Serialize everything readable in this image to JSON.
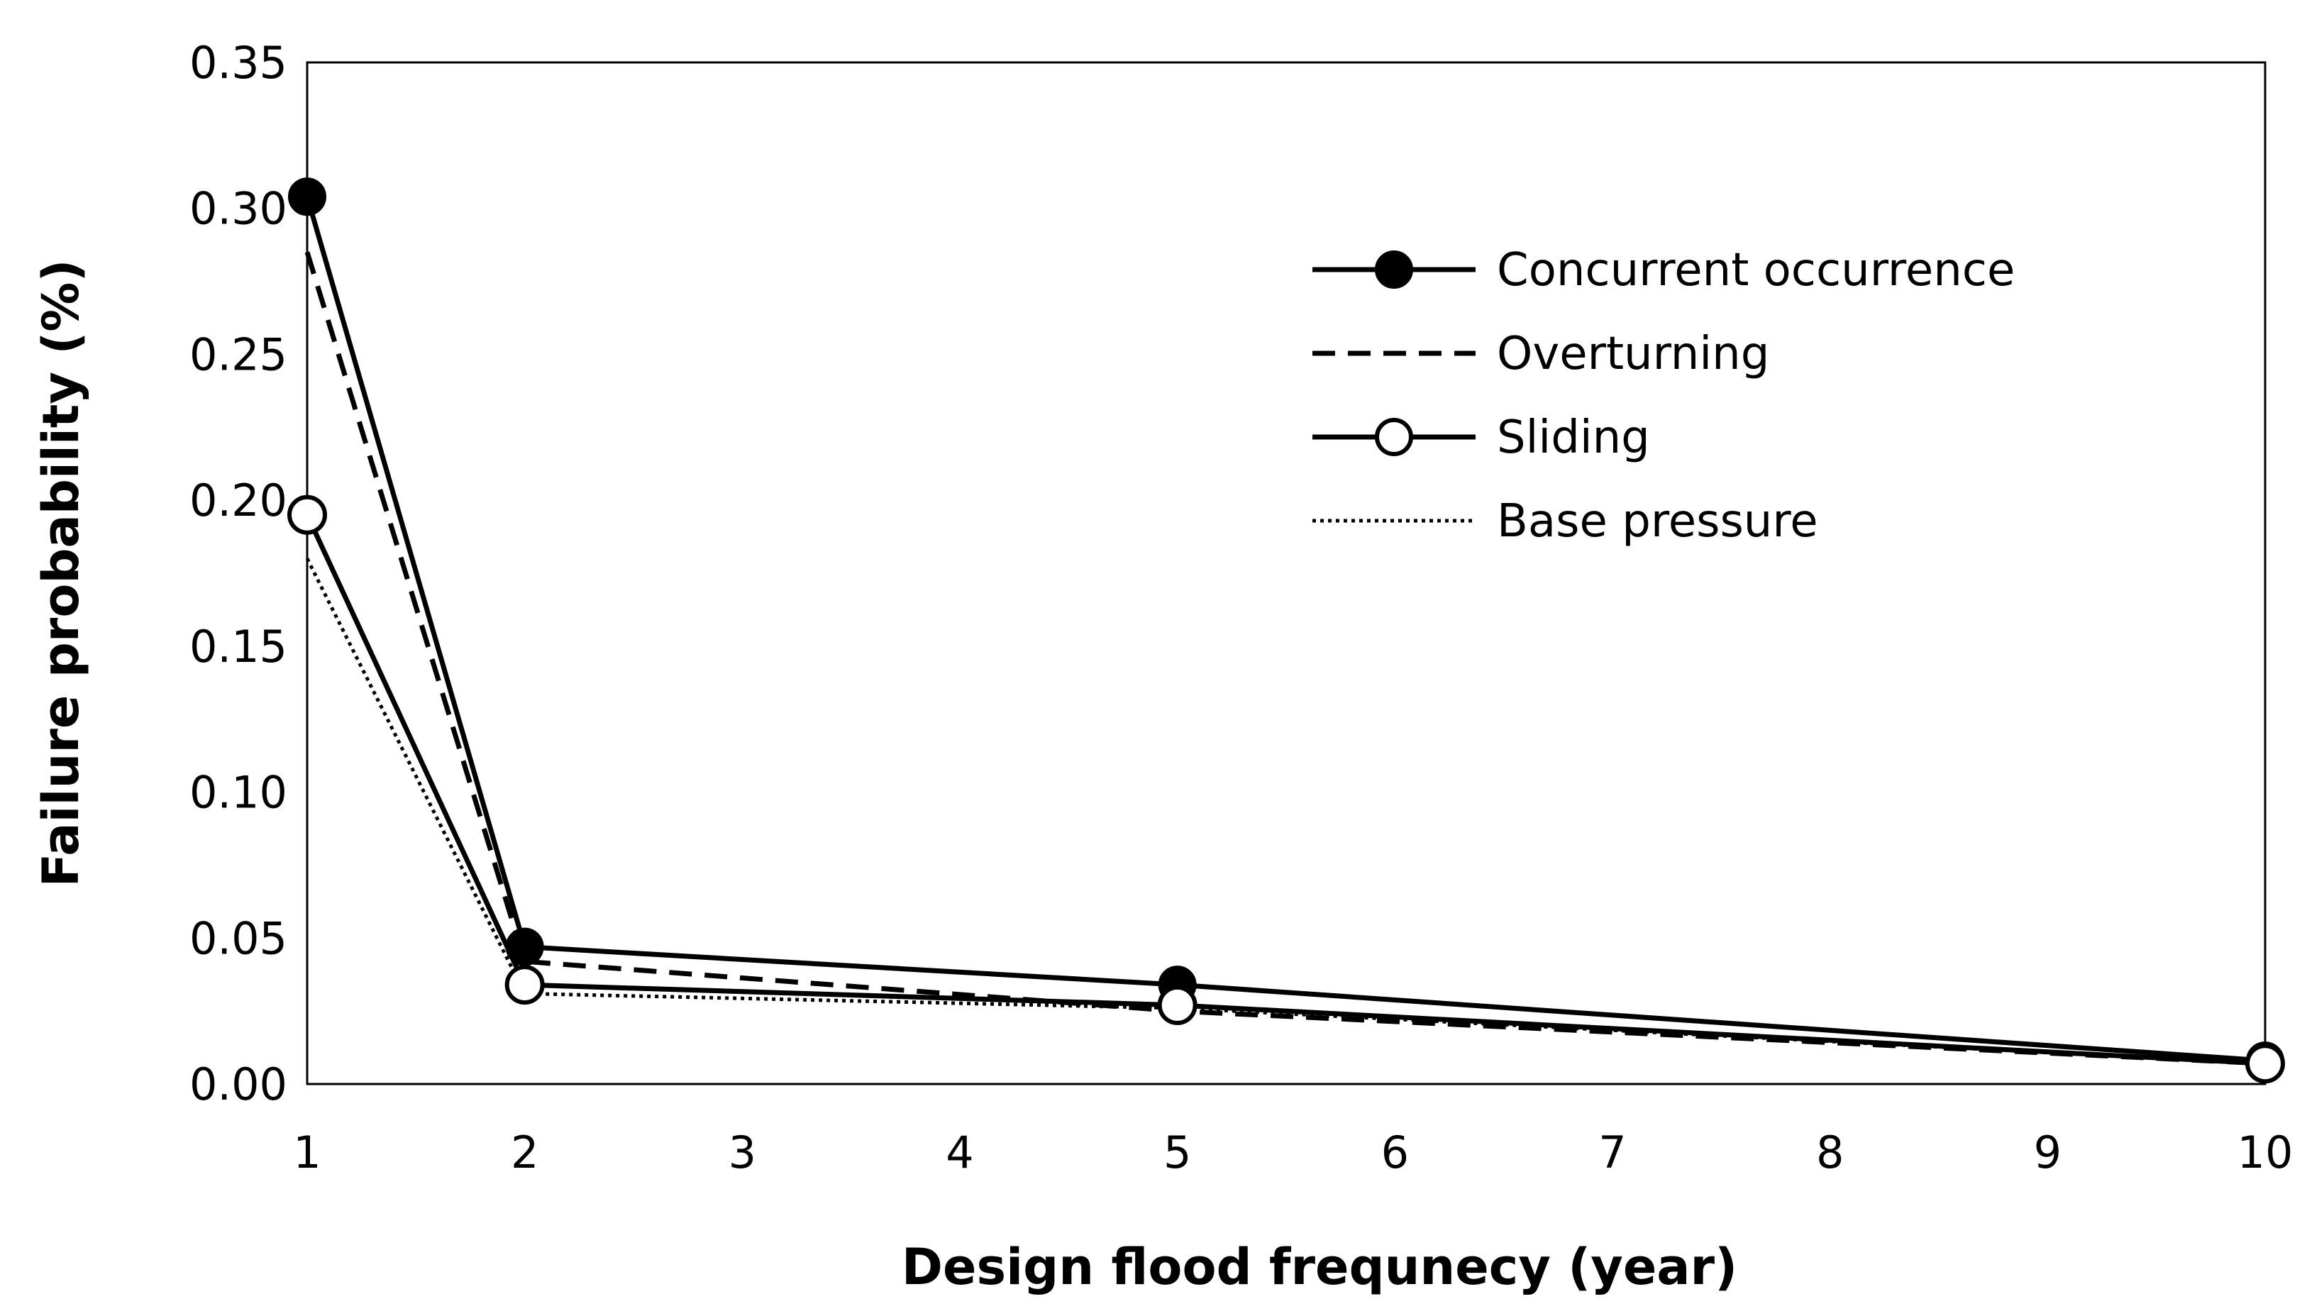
{
  "chart_data": {
    "type": "line",
    "title": "",
    "xlabel": "Design flood frequnecy (year)",
    "ylabel": "Failure probability (%)",
    "x_categories": [
      "1",
      "2",
      "3",
      "4",
      "5",
      "6",
      "7",
      "8",
      "9",
      "10"
    ],
    "ylim": [
      0,
      0.35
    ],
    "yticks": [
      "0.00",
      "0.05",
      "0.10",
      "0.15",
      "0.20",
      "0.25",
      "0.30",
      "0.35"
    ],
    "grid": false,
    "legend_position": "top-right",
    "series": [
      {
        "name": "Concurrent occurrence",
        "style": "solid",
        "marker": "filled-circle",
        "x": [
          1,
          2,
          5,
          10
        ],
        "values": [
          0.304,
          0.047,
          0.034,
          0.008
        ]
      },
      {
        "name": "Overturning",
        "style": "dashed",
        "marker": "none",
        "x": [
          1,
          2,
          5,
          10
        ],
        "values": [
          0.285,
          0.042,
          0.025,
          0.007
        ]
      },
      {
        "name": "Sliding",
        "style": "solid",
        "marker": "open-circle",
        "x": [
          1,
          2,
          5,
          10
        ],
        "values": [
          0.195,
          0.034,
          0.027,
          0.007
        ]
      },
      {
        "name": "Base pressure",
        "style": "dotted",
        "marker": "none",
        "x": [
          1,
          2,
          5,
          10
        ],
        "values": [
          0.18,
          0.031,
          0.026,
          0.007
        ]
      }
    ],
    "colors": {
      "line": "#000000",
      "background": "#ffffff",
      "frame": "#000000"
    }
  }
}
